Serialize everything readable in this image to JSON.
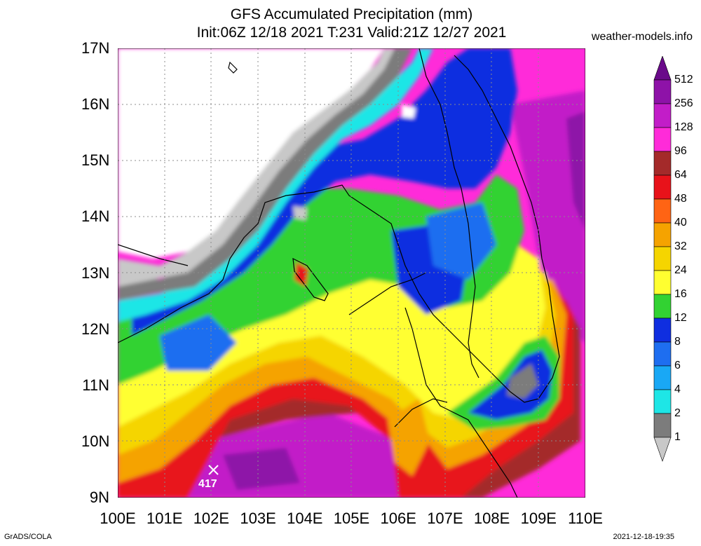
{
  "header": {
    "title_line1": "GFS Accumulated Precipitation (mm)",
    "title_line2": "Init:06Z 12/18 2021 T:231 Valid:21Z 12/27 2021",
    "site": "weather-models.info"
  },
  "axes": {
    "lat_labels": [
      "17N",
      "16N",
      "15N",
      "14N",
      "13N",
      "12N",
      "11N",
      "10N",
      "9N"
    ],
    "lon_labels": [
      "100E",
      "101E",
      "102E",
      "103E",
      "104E",
      "105E",
      "106E",
      "107E",
      "108E",
      "109E",
      "110E"
    ],
    "lat_range": [
      9,
      17
    ],
    "lon_range": [
      100,
      110
    ]
  },
  "legend": {
    "levels": [
      "512",
      "256",
      "128",
      "96",
      "64",
      "48",
      "40",
      "32",
      "24",
      "16",
      "12",
      "8",
      "6",
      "4",
      "2",
      "1"
    ],
    "colors": [
      "#6a0a8a",
      "#8e12a8",
      "#c21dc8",
      "#ff2bd9",
      "#a42a2a",
      "#e8121a",
      "#ff6414",
      "#f5a300",
      "#f5d500",
      "#ffff30",
      "#32d232",
      "#0f2ee0",
      "#1e6ef0",
      "#19a8f5",
      "#1ee6e6",
      "#7c7c7c",
      "#c8c8c8"
    ]
  },
  "max_marker": {
    "value": "417",
    "lon": 102.05,
    "lat": 9.4
  },
  "footer": {
    "left": "GrADS/COLA",
    "right": "2021-12-18-19:35"
  }
}
